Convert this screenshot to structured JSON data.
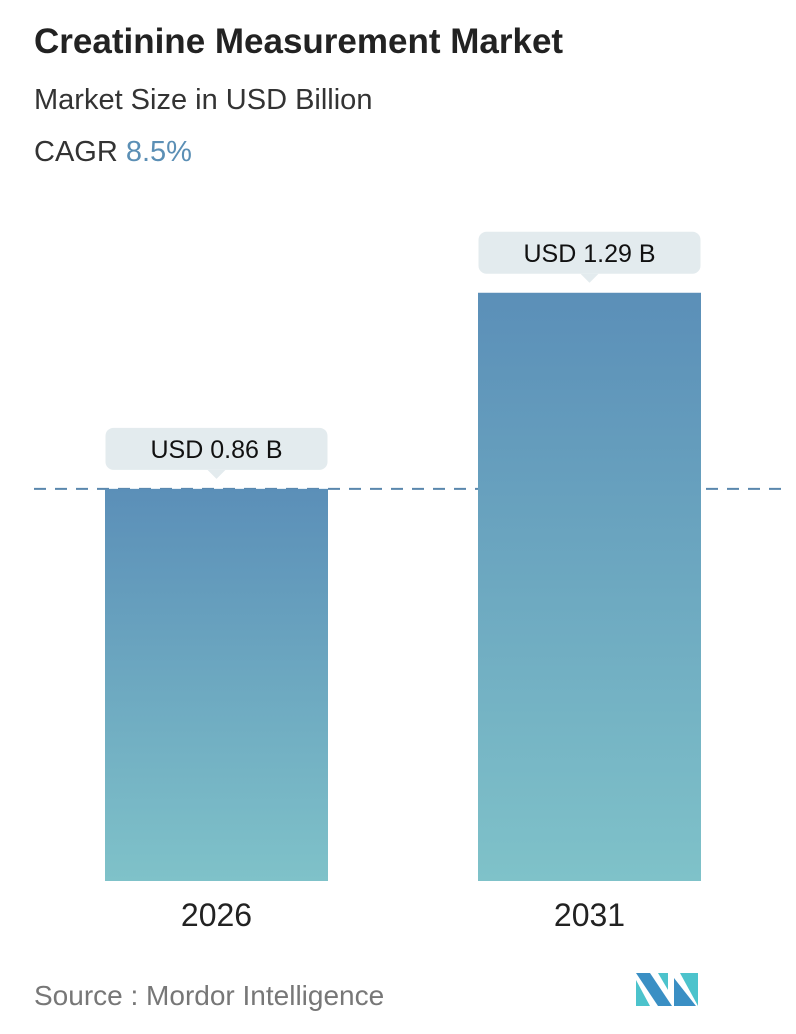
{
  "title": "Creatinine Measurement Market",
  "subtitle": "Market Size in USD Billion",
  "cagr": {
    "label": "CAGR",
    "value": "8.5%"
  },
  "source": "Source :  Mordor Intelligence",
  "colors": {
    "bar_top": "#5b8fb8",
    "bar_bottom": "#7fc2c9",
    "label_bg": "#e3ebee",
    "dash": "#5a87ad",
    "cagr": "#5b8fb5"
  },
  "chart_data": {
    "type": "bar",
    "categories": [
      "2026",
      "2031"
    ],
    "values": [
      0.86,
      1.29
    ],
    "data_labels": [
      "USD 0.86 B",
      "USD 1.29 B"
    ],
    "ylabel": "Market Size in USD Billion",
    "grid": false,
    "reference_line": 0.86
  }
}
